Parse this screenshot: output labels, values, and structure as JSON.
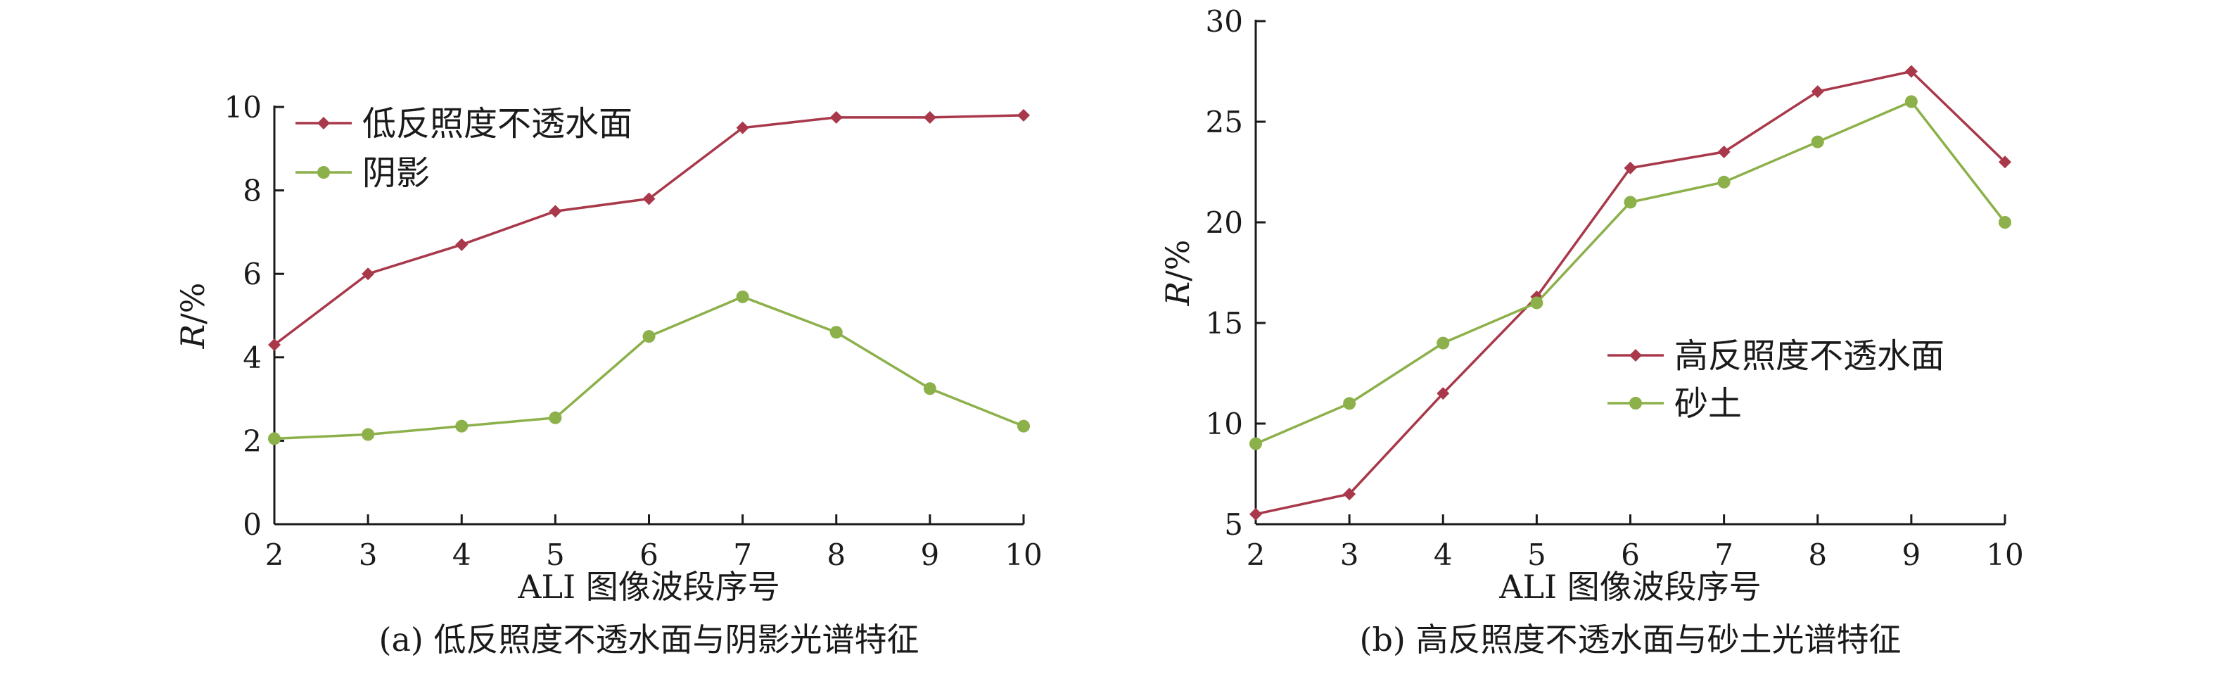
{
  "chart_data": [
    {
      "type": "line",
      "caption": "(a) 低反照度不透水面与阴影光谱特征",
      "xlabel": "ALI 图像波段序号",
      "ylabel": "R/%",
      "x": [
        2,
        3,
        4,
        5,
        6,
        7,
        8,
        9,
        10
      ],
      "xlim": [
        2,
        10
      ],
      "ylim": [
        0,
        10
      ],
      "yticks": [
        0,
        2,
        4,
        6,
        8,
        10
      ],
      "grid": false,
      "legend_position": "top-left",
      "series": [
        {
          "name": "低反照度不透水面",
          "marker": "diamond",
          "color": "#a8384a",
          "values": [
            4.3,
            6.0,
            6.7,
            7.5,
            7.8,
            9.5,
            9.75,
            9.75,
            9.8
          ]
        },
        {
          "name": "阴影",
          "marker": "circle",
          "color": "#8cb04a",
          "values": [
            2.05,
            2.15,
            2.35,
            2.55,
            4.5,
            5.45,
            4.6,
            3.25,
            2.35
          ]
        }
      ]
    },
    {
      "type": "line",
      "caption": "(b) 高反照度不透水面与砂土光谱特征",
      "xlabel": "ALI 图像波段序号",
      "ylabel": "R/%",
      "x": [
        2,
        3,
        4,
        5,
        6,
        7,
        8,
        9,
        10
      ],
      "xlim": [
        2,
        10
      ],
      "ylim": [
        5,
        30
      ],
      "yticks": [
        5,
        10,
        15,
        20,
        25,
        30
      ],
      "grid": false,
      "legend_position": "center-right",
      "series": [
        {
          "name": "高反照度不透水面",
          "marker": "diamond",
          "color": "#a8384a",
          "values": [
            5.5,
            6.5,
            11.5,
            16.3,
            22.7,
            23.5,
            26.5,
            27.5,
            23.0
          ]
        },
        {
          "name": "砂土",
          "marker": "circle",
          "color": "#8cb04a",
          "values": [
            9.0,
            11.0,
            14.0,
            16.0,
            21.0,
            22.0,
            24.0,
            26.0,
            20.0
          ]
        }
      ]
    }
  ]
}
